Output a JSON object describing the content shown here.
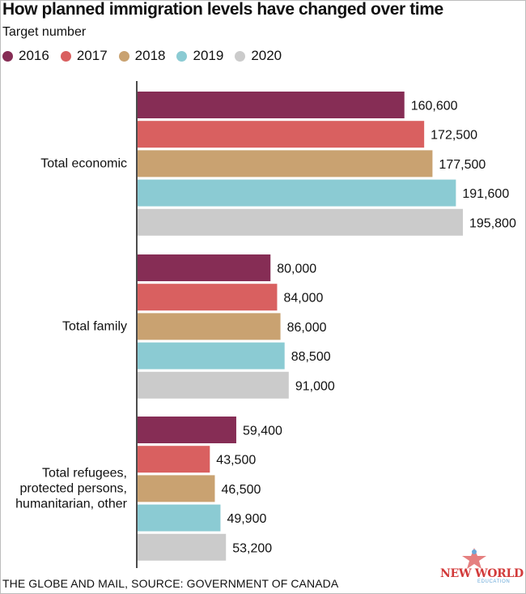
{
  "title": "How planned immigration levels have changed over time",
  "subtitle": "Target number",
  "source": "THE GLOBE AND MAIL, SOURCE: GOVERNMENT OF CANADA",
  "logo": {
    "text": "NEW WORLD",
    "sub": "EDUCATION"
  },
  "chart_data": {
    "type": "bar",
    "orientation": "horizontal",
    "categories": [
      "Total economic",
      "Total family",
      "Total refugees, protected persons, humanitarian, other"
    ],
    "category_label_lines": [
      [
        "Total economic"
      ],
      [
        "Total family"
      ],
      [
        "Total refugees,",
        "protected persons,",
        "humanitarian, other"
      ]
    ],
    "series": [
      {
        "name": "2016",
        "color": "#862d55",
        "values": [
          160600,
          80000,
          59400
        ],
        "labels": [
          "160,600",
          "80,000",
          "59,400"
        ]
      },
      {
        "name": "2017",
        "color": "#d96060",
        "values": [
          172500,
          84000,
          43500
        ],
        "labels": [
          "172,500",
          "84,000",
          "43,500"
        ]
      },
      {
        "name": "2018",
        "color": "#c9a271",
        "values": [
          177500,
          86000,
          46500
        ],
        "labels": [
          "177,500",
          "86,000",
          "46,500"
        ]
      },
      {
        "name": "2019",
        "color": "#8bcbd3",
        "values": [
          191600,
          88500,
          49900
        ],
        "labels": [
          "191,600",
          "88,500",
          "49,900"
        ]
      },
      {
        "name": "2020",
        "color": "#cbcbcb",
        "values": [
          195800,
          91000,
          53200
        ],
        "labels": [
          "195,800",
          "91,000",
          "53,200"
        ]
      }
    ],
    "legend_position": "top-left",
    "grid": false
  }
}
